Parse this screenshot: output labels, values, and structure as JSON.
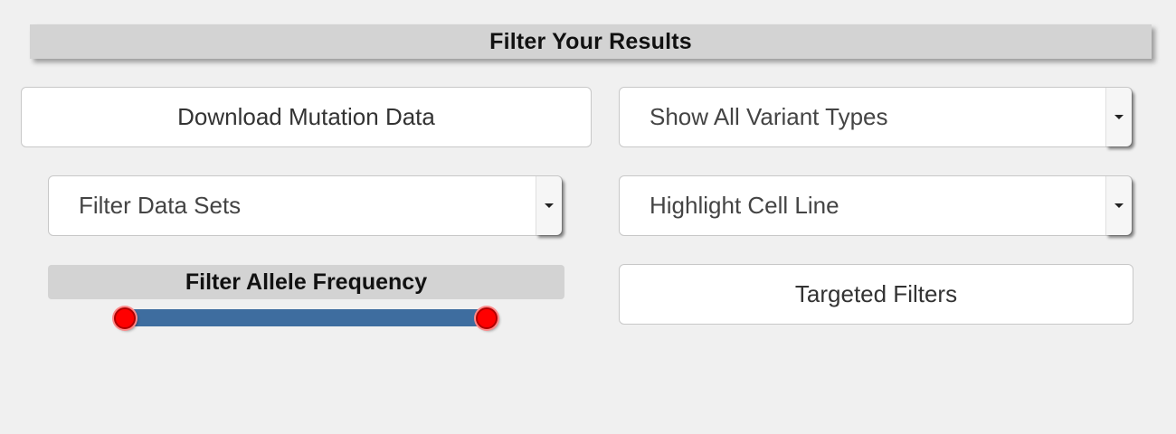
{
  "header": {
    "title": "Filter Your Results"
  },
  "controls": {
    "download_label": "Download Mutation Data",
    "variant_select_label": "Show All Variant Types",
    "datasets_select_label": "Filter Data Sets",
    "cellline_select_label": "Highlight Cell Line",
    "allele_frequency_label": "Filter Allele Frequency",
    "targeted_filters_label": "Targeted Filters"
  },
  "slider": {
    "min_fraction": 0.0,
    "max_fraction": 1.0
  },
  "icons": {
    "dropdown": "chevron-down-icon"
  },
  "colors": {
    "track": "#3e6d9f",
    "handle": "#ff0000",
    "header_bg": "#d3d3d3"
  }
}
